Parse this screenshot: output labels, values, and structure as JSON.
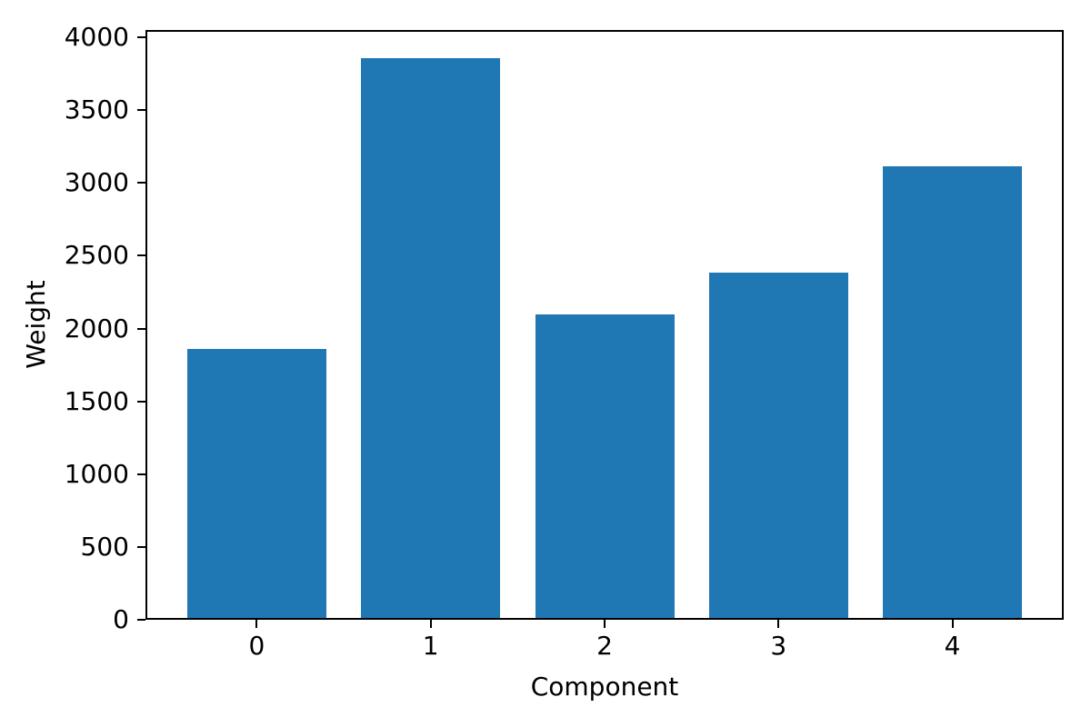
{
  "figure": {
    "background": "#ffffff",
    "text_color": "#000000"
  },
  "chart_data": {
    "type": "bar",
    "title": "",
    "xlabel": "Component",
    "ylabel": "Weight",
    "categories": [
      "0",
      "1",
      "2",
      "3",
      "4"
    ],
    "values": [
      1855,
      3855,
      2090,
      2380,
      3110
    ],
    "yticks": [
      0,
      500,
      1000,
      1500,
      2000,
      2500,
      3000,
      3500,
      4000
    ],
    "ylim": [
      0,
      4050
    ],
    "xlim": [
      -0.64,
      4.64
    ],
    "bar_width_units": 0.8,
    "bar_color": "#1f77b4",
    "axis_color": "#000000",
    "grid": false,
    "legend": "none"
  }
}
